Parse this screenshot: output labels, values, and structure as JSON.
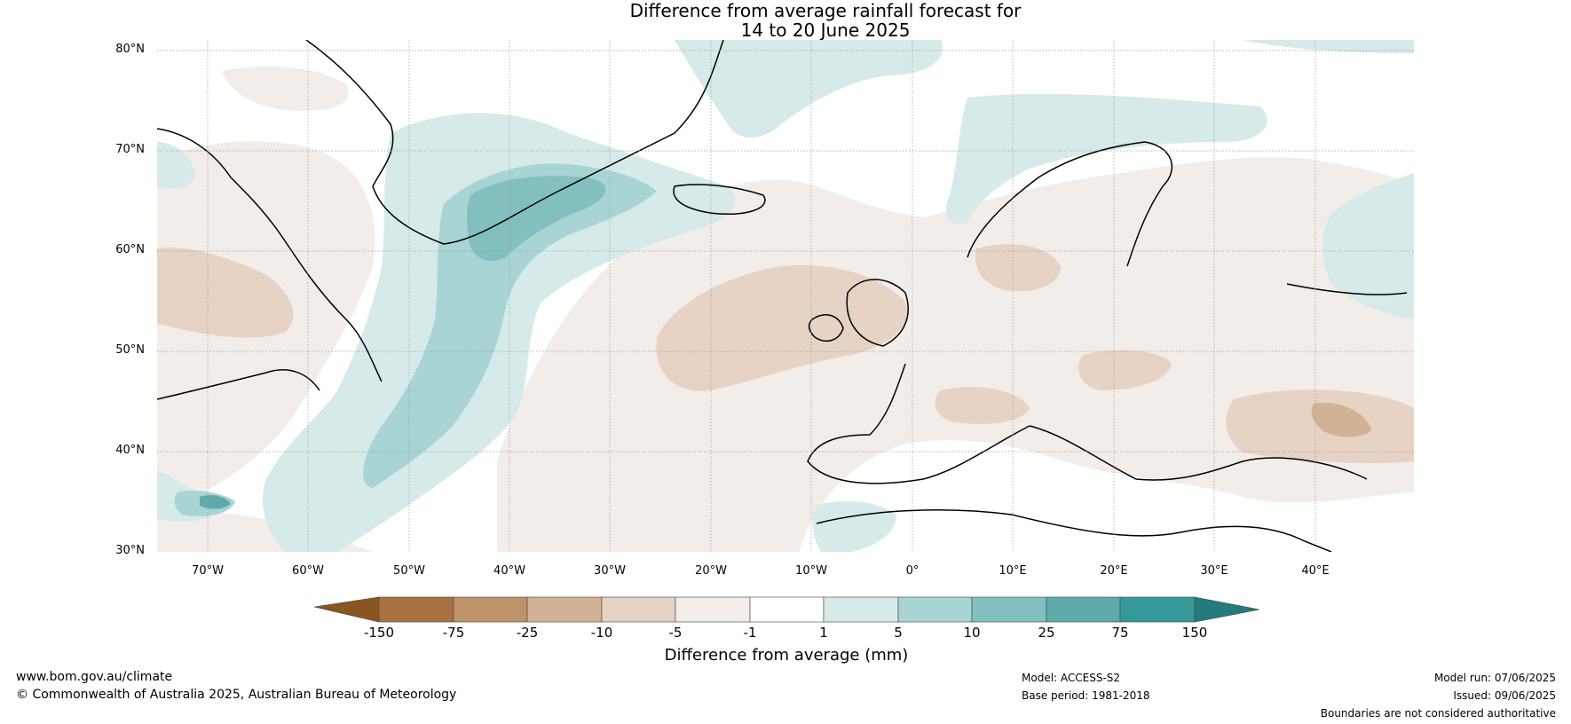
{
  "title": {
    "line1": "Difference from average rainfall forecast for",
    "line2": "14 to 20 June 2025"
  },
  "map": {
    "lat_labels": [
      "80°N",
      "70°N",
      "60°N",
      "50°N",
      "40°N",
      "30°N"
    ],
    "lon_labels": [
      "70°W",
      "60°W",
      "50°W",
      "40°W",
      "30°W",
      "20°W",
      "10°W",
      "0°",
      "10°E",
      "20°E",
      "30°E",
      "40°E"
    ]
  },
  "colorbar": {
    "title": "Difference from average (mm)",
    "ticks": [
      "-150",
      "-75",
      "-25",
      "-10",
      "-5",
      "-1",
      "1",
      "5",
      "10",
      "25",
      "75",
      "150"
    ],
    "colors": [
      "#8a5620",
      "#a8713f",
      "#c0926a",
      "#d2b294",
      "#e6d3c3",
      "#f3ede9",
      "#ffffff",
      "#d6eaea",
      "#a8d4d4",
      "#82c0c0",
      "#5fabab",
      "#35999a",
      "#247b7c"
    ]
  },
  "footer": {
    "website": "www.bom.gov.au/climate",
    "copyright": "© Commonwealth of Australia 2025, Australian Bureau of Meteorology",
    "model": "Model: ACCESS-S2",
    "base_period": "Base period: 1981-2018",
    "model_run": "Model run: 07/06/2025",
    "issued": "Issued: 09/06/2025",
    "disclaimer": "Boundaries are not considered authoritative"
  }
}
